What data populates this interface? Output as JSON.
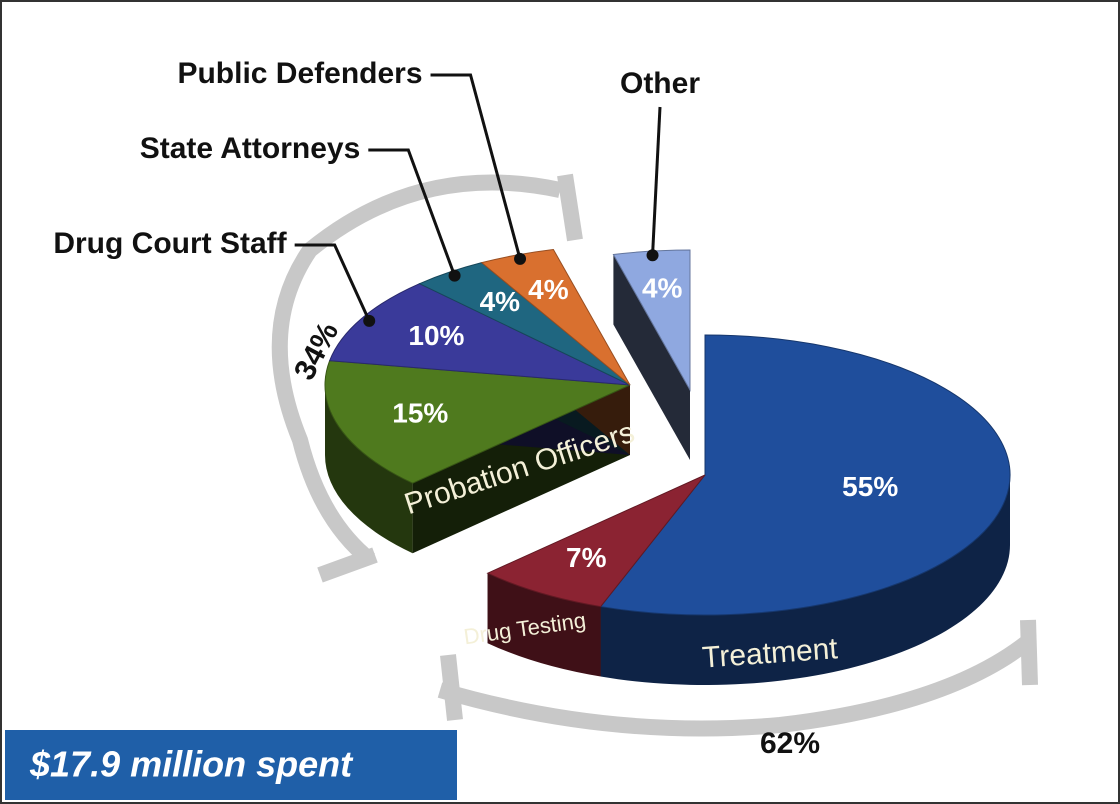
{
  "chart_data": {
    "type": "pie",
    "categories": [
      "Treatment",
      "Drug Testing",
      "Probation Officers",
      "Drug Court Staff",
      "State Attorneys",
      "Public Defenders",
      "Other"
    ],
    "values": [
      55,
      7,
      15,
      10,
      4,
      4,
      4
    ],
    "value_labels": [
      "55%",
      "7%",
      "15%",
      "10%",
      "4%",
      "4%",
      "4%"
    ],
    "colors": [
      "#1f4e9c",
      "#8b2332",
      "#4f7a1e",
      "#3a3a9a",
      "#1f6680",
      "#d9702f",
      "#8fa8e0"
    ],
    "group_labels": [
      "62%",
      "34%"
    ],
    "caption": "$17.9 million spent"
  }
}
